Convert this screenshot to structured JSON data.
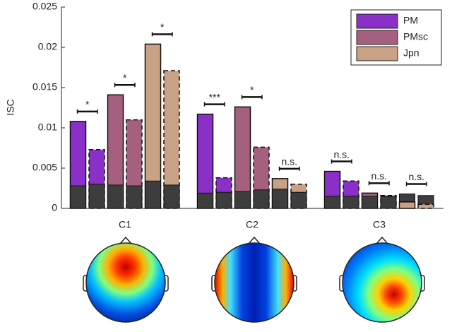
{
  "chart_data": {
    "type": "bar",
    "y_label": "ISC",
    "categories": [
      "C1",
      "C2",
      "C3"
    ],
    "ylim": [
      0,
      0.025
    ],
    "yticks": [
      0,
      0.005,
      0.01,
      0.015,
      0.02,
      0.025
    ],
    "baseline_color": "#3d3d3d",
    "series": [
      {
        "name": "PM",
        "color": "#8a2fc8",
        "values": [
          0.0108,
          0.0117,
          0.0046
        ],
        "values_dashed": [
          0.0073,
          0.0038,
          0.0034
        ],
        "baseline": [
          0.0028,
          0.0019,
          0.0015
        ],
        "baseline_dashed": [
          0.003,
          0.002,
          0.0015
        ]
      },
      {
        "name": "PMsc",
        "color": "#a6607f",
        "values": [
          0.0141,
          0.0126,
          0.0019
        ],
        "values_dashed": [
          0.011,
          0.0076,
          0.0016
        ],
        "baseline": [
          0.0029,
          0.0021,
          0.0015
        ],
        "baseline_dashed": [
          0.0028,
          0.0023,
          0.0015
        ]
      },
      {
        "name": "Jpn",
        "color": "#c9a285",
        "values": [
          0.0204,
          0.0037,
          0.0008
        ],
        "values_dashed": [
          0.0171,
          0.003,
          0.0005
        ],
        "baseline": [
          0.0034,
          0.0024,
          0.0018
        ],
        "baseline_dashed": [
          0.0029,
          0.002,
          0.0016
        ]
      }
    ],
    "significance": [
      [
        "*",
        "*",
        "*"
      ],
      [
        "***",
        "*",
        "n.s."
      ],
      [
        "n.s.",
        "n.s.",
        "n.s."
      ]
    ],
    "legend": "upper right"
  }
}
